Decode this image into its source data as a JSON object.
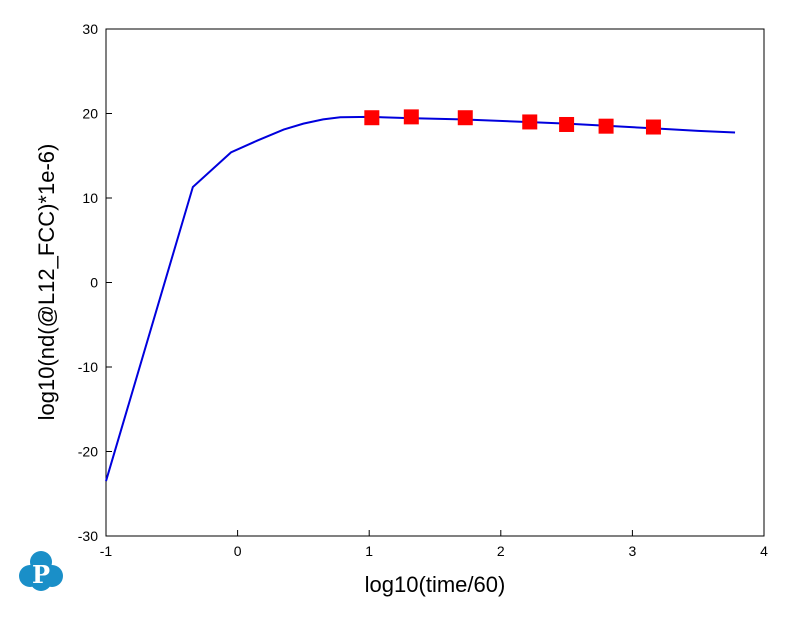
{
  "chart_data": {
    "type": "line",
    "title": "",
    "xlabel": "log10(time/60)",
    "ylabel": "log10(nd(@L12_FCC)*1e-6)",
    "xlim": [
      -1,
      4
    ],
    "ylim": [
      -30,
      30
    ],
    "x_ticks": [
      "-1",
      "0",
      "1",
      "2",
      "3",
      "4"
    ],
    "y_ticks": [
      "-30",
      "-20",
      "-10",
      "0",
      "10",
      "20",
      "30"
    ],
    "grid": false,
    "legend": "none",
    "series": [
      {
        "kind": "line",
        "color": "#0000dd",
        "x": [
          -1.0,
          -0.34,
          -0.05,
          0.15,
          0.35,
          0.5,
          0.65,
          0.78,
          1.0,
          1.3,
          1.7,
          2.2,
          2.5,
          2.8,
          3.15,
          3.5,
          3.78
        ],
        "y": [
          -23.5,
          11.3,
          15.4,
          16.8,
          18.1,
          18.8,
          19.3,
          19.55,
          19.6,
          19.45,
          19.3,
          19.0,
          18.8,
          18.55,
          18.25,
          17.95,
          17.75
        ]
      },
      {
        "kind": "scatter",
        "color": "#ff0000",
        "marker": "square",
        "x": [
          1.02,
          1.32,
          1.73,
          2.22,
          2.5,
          2.8,
          3.16
        ],
        "y": [
          19.5,
          19.6,
          19.5,
          19.0,
          18.7,
          18.5,
          18.4
        ]
      }
    ]
  },
  "logo": {
    "letter": "P",
    "color": "#1a8fc8",
    "icon": "logo-cloud-icon"
  }
}
